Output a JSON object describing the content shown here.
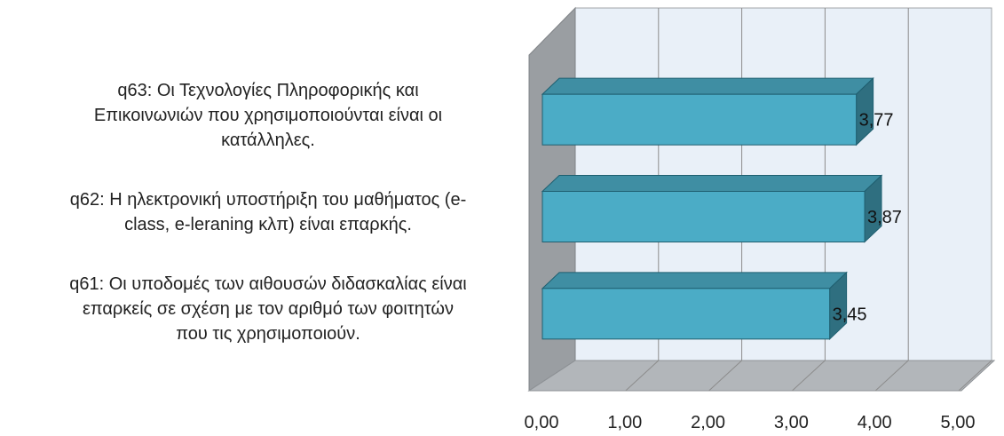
{
  "chart_data": {
    "type": "bar",
    "orientation": "horizontal",
    "style": "3d",
    "categories": [
      "q61: Οι υποδομές των αιθουσών διδασκαλίας είναι επαρκείς σε σχέση με τον αριθμό των φοιτητών που τις χρησιμοποιούν.",
      "q62: Η ηλεκτρονική υποστήριξη του μαθήματος (e-class, e-leraning κλπ) είναι επαρκής.",
      "q63: Οι Τεχνολογίες Πληροφορικής και Επικοινωνιών που χρησιμοποιούνται είναι οι κατάλληλες."
    ],
    "category_lines": [
      [
        "q61: Οι υποδομές των αιθουσών διδασκαλίας είναι",
        "επαρκείς σε σχέση με τον αριθμό των φοιτητών",
        "που τις χρησιμοποιούν."
      ],
      [
        "q62: Η ηλεκτρονική υποστήριξη του μαθήματος (e-",
        "class, e-leraning κλπ) είναι επαρκής."
      ],
      [
        "q63: Οι Τεχνολογίες Πληροφορικής και",
        "Επικοινωνιών που χρησιμοποιούνται είναι οι",
        "κατάλληλες."
      ]
    ],
    "values": [
      3.45,
      3.87,
      3.77
    ],
    "data_labels": [
      "3,45",
      "3,87",
      "3,77"
    ],
    "xlim": [
      0,
      5
    ],
    "x_ticks": [
      0,
      1,
      2,
      3,
      4,
      5
    ],
    "x_tick_labels": [
      "0,00",
      "1,00",
      "2,00",
      "3,00",
      "4,00",
      "5,00"
    ],
    "grid": true,
    "title": "",
    "xlabel": "",
    "ylabel": "",
    "colors": {
      "bar_front": "#4bacc6",
      "bar_top": "#3f8ea3",
      "bar_side": "#2f6f80",
      "bar_edge": "#1f5f70",
      "back_wall": "#e9f0f8",
      "side_wall": "#9a9ea2",
      "floor": "#b2b6ba",
      "grid_line": "#8c8c8c"
    }
  }
}
